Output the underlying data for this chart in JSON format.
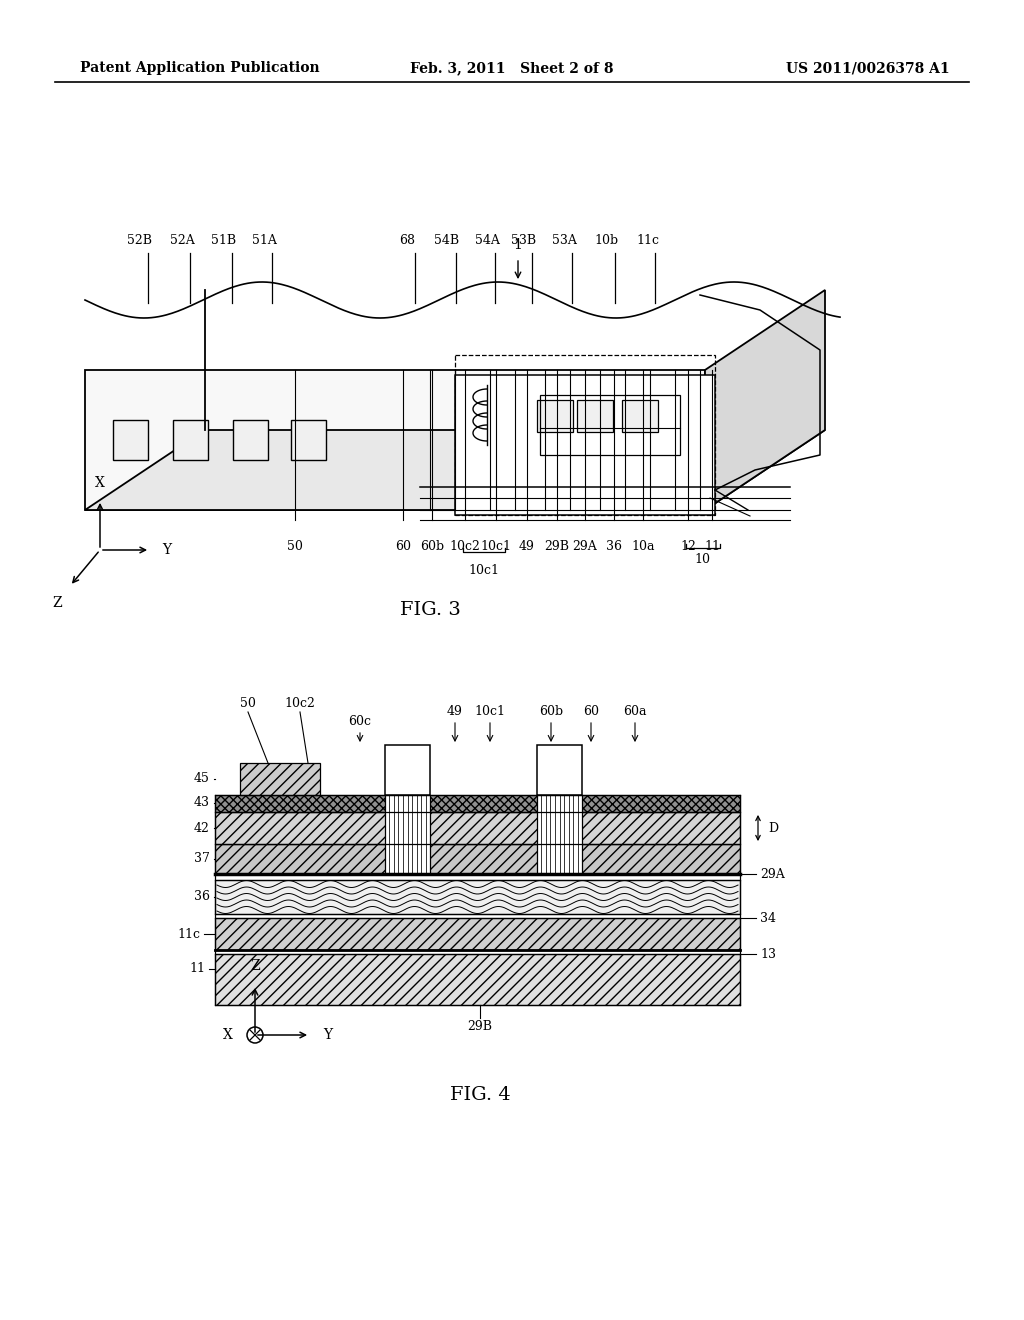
{
  "header_left": "Patent Application Publication",
  "header_center": "Feb. 3, 2011   Sheet 2 of 8",
  "header_right": "US 2011/0026378 A1",
  "fig3_label": "FIG. 3",
  "fig4_label": "FIG. 4",
  "background_color": "#ffffff",
  "line_color": "#000000"
}
